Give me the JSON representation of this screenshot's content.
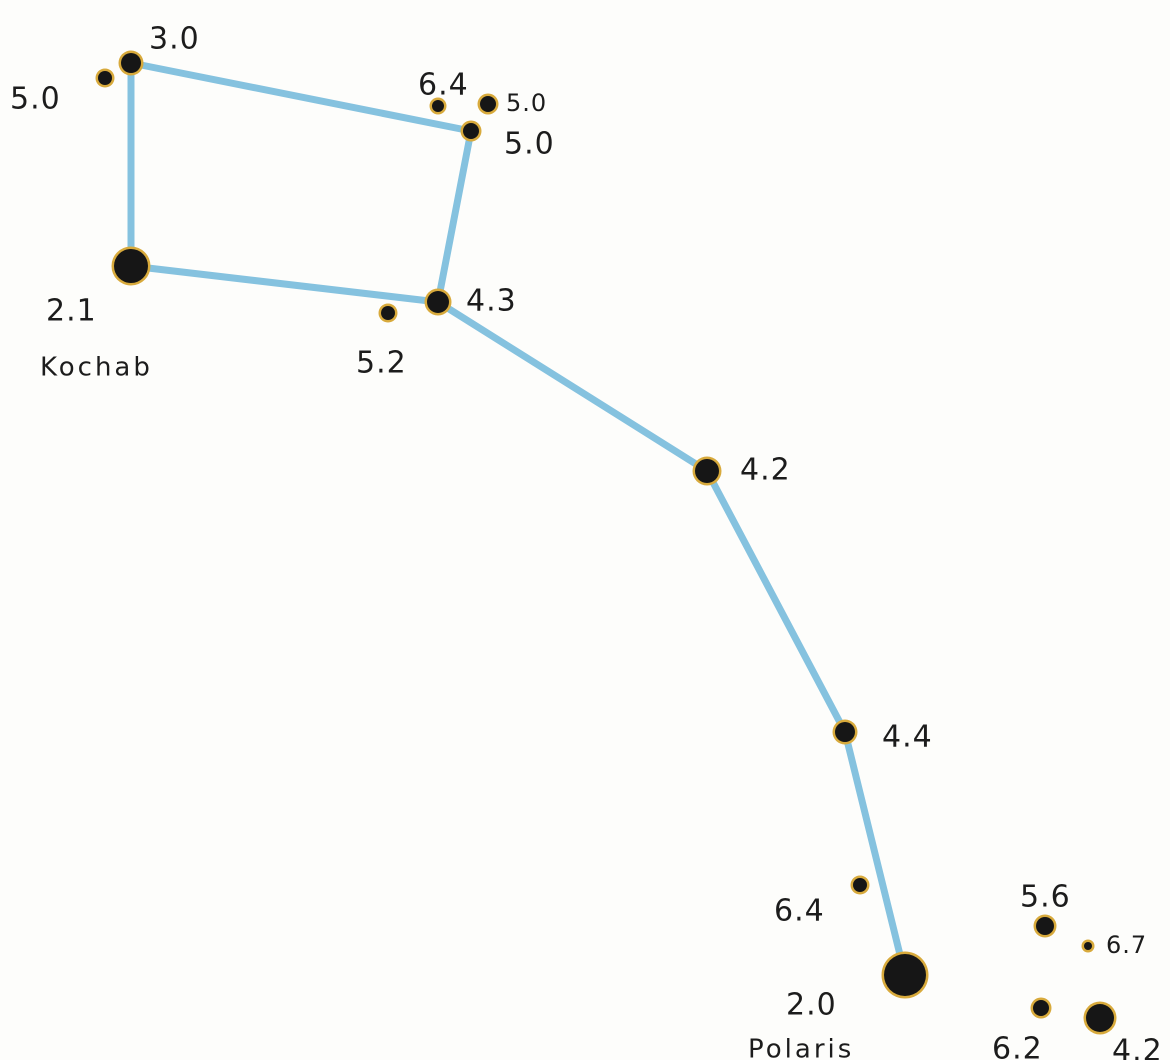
{
  "colors": {
    "line": "#79bcdc",
    "star": "#161616",
    "halo": "#d8aa3c",
    "text": "#1c1c1c"
  },
  "stars": [
    {
      "id": "s1",
      "mag": "3.0",
      "named": ""
    },
    {
      "id": "s2",
      "mag": "5.0",
      "named": ""
    },
    {
      "id": "s3",
      "mag": "6.4",
      "named": ""
    },
    {
      "id": "s4",
      "mag": "5.0",
      "named": ""
    },
    {
      "id": "s5",
      "mag": "5.0",
      "named": ""
    },
    {
      "id": "s6",
      "mag": "2.1",
      "named": "Kochab"
    },
    {
      "id": "s7",
      "mag": "5.2",
      "named": ""
    },
    {
      "id": "s8",
      "mag": "4.3",
      "named": ""
    },
    {
      "id": "s9",
      "mag": "4.2",
      "named": ""
    },
    {
      "id": "s10",
      "mag": "4.4",
      "named": ""
    },
    {
      "id": "s11",
      "mag": "6.4",
      "named": ""
    },
    {
      "id": "s12",
      "mag": "2.0",
      "named": "Polaris"
    },
    {
      "id": "s13",
      "mag": "5.6",
      "named": ""
    },
    {
      "id": "s14",
      "mag": "6.7",
      "named": ""
    },
    {
      "id": "s15",
      "mag": "6.2",
      "named": ""
    },
    {
      "id": "s16",
      "mag": "4.2",
      "named": ""
    }
  ],
  "connections": [
    [
      "s1",
      "s5"
    ],
    [
      "s5",
      "s8"
    ],
    [
      "s8",
      "s6"
    ],
    [
      "s6",
      "s1"
    ],
    [
      "s8",
      "s9"
    ],
    [
      "s9",
      "s10"
    ],
    [
      "s10",
      "s12"
    ]
  ]
}
